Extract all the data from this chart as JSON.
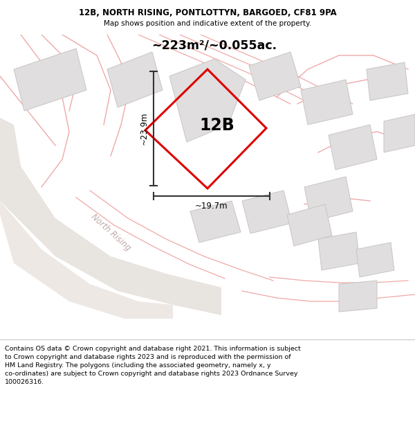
{
  "title_line1": "12B, NORTH RISING, PONTLOTTYN, BARGOED, CF81 9PA",
  "title_line2": "Map shows position and indicative extent of the property.",
  "area_text": "~223m²/~0.055ac.",
  "label_12B": "12B",
  "dim_vertical": "~23.9m",
  "dim_horizontal": "~19.7m",
  "street_label": "North Rising",
  "footer_text": "Contains OS data © Crown copyright and database right 2021. This information is subject to Crown copyright and database rights 2023 and is reproduced with the permission of HM Land Registry. The polygons (including the associated geometry, namely x, y co-ordinates) are subject to Crown copyright and database rights 2023 Ordnance Survey 100026316.",
  "red_color": "#dd0000",
  "pink_color": "#f0a8a8",
  "pink_light": "#f5c0c0",
  "gray_building": "#e0dede",
  "gray_building_stroke": "#c8c4c4",
  "map_bg": "#ffffff",
  "title_bg": "#ffffff",
  "footer_bg": "#ffffff",
  "road_gray": "#e8e4e0",
  "dim_color": "#333333"
}
